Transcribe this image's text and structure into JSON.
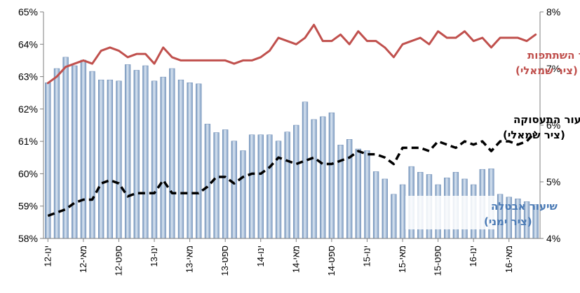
{
  "chart_data": {
    "type": "bar+line",
    "x": [
      "ינו-12",
      "פבר-12",
      "מרץ-12",
      "אפר-12",
      "מאי-12",
      "יונ-12",
      "יול-12",
      "אוג-12",
      "ספט-12",
      "אוק-12",
      "נוב-12",
      "דצמ-12",
      "ינו-13",
      "פבר-13",
      "מרץ-13",
      "אפר-13",
      "מאי-13",
      "יונ-13",
      "יול-13",
      "אוג-13",
      "ספט-13",
      "אוק-13",
      "נוב-13",
      "דצמ-13",
      "ינו-14",
      "פבר-14",
      "מרץ-14",
      "אפר-14",
      "מאי-14",
      "יונ-14",
      "יול-14",
      "אוג-14",
      "ספט-14",
      "אוק-14",
      "נוב-14",
      "דצמ-14",
      "ינו-15",
      "פבר-15",
      "מרץ-15",
      "אפר-15",
      "מאי-15",
      "יונ-15",
      "יול-15",
      "אוג-15",
      "ספט-15",
      "אוק-15",
      "נוב-15",
      "דצמ-15",
      "ינו-16",
      "פבר-16",
      "מרץ-16",
      "אפר-16",
      "מאי-16",
      "יונ-16",
      "יול-16",
      "אוג-16"
    ],
    "x_tick_labels": [
      "ינו-12",
      "מאי-12",
      "ספט-12",
      "ינו-13",
      "מאי-13",
      "ספט-13",
      "ינו-14",
      "מאי-14",
      "ספט-14",
      "ינו-15",
      "מאי-15",
      "ספט-15",
      "ינו-16",
      "מאי-16"
    ],
    "left_axis": {
      "ylim": [
        58,
        65
      ],
      "ticks": [
        "58%",
        "59%",
        "60%",
        "61%",
        "62%",
        "63%",
        "64%",
        "65%"
      ]
    },
    "right_axis": {
      "ylim": [
        4,
        8
      ],
      "ticks": [
        "4%",
        "5%",
        "6%",
        "7%",
        "8%"
      ]
    },
    "series": [
      {
        "name": "שיעור השתתפות",
        "axis_note": "(ציר שמאלי)",
        "axis": "left",
        "style": "line",
        "color": "#c0504d",
        "values": [
          62.8,
          63.0,
          63.3,
          63.4,
          63.5,
          63.4,
          63.8,
          63.9,
          63.8,
          63.6,
          63.7,
          63.7,
          63.4,
          63.9,
          63.6,
          63.5,
          63.5,
          63.5,
          63.5,
          63.5,
          63.5,
          63.4,
          63.5,
          63.5,
          63.6,
          63.8,
          64.2,
          64.1,
          64.0,
          64.2,
          64.6,
          64.1,
          64.1,
          64.3,
          64.0,
          64.4,
          64.1,
          64.1,
          63.9,
          63.6,
          64.0,
          64.1,
          64.2,
          64.0,
          64.4,
          64.2,
          64.2,
          64.4,
          64.1,
          64.2,
          63.9,
          64.2,
          64.2,
          64.2,
          64.1,
          64.3
        ]
      },
      {
        "name": "שיעור התעסוקה",
        "axis_note": "(ציר שמאלי)",
        "axis": "left",
        "style": "dashed-line",
        "color": "#000000",
        "values": [
          58.7,
          58.8,
          58.9,
          59.1,
          59.2,
          59.2,
          59.7,
          59.8,
          59.7,
          59.3,
          59.4,
          59.4,
          59.4,
          59.8,
          59.4,
          59.4,
          59.4,
          59.4,
          59.6,
          59.9,
          59.9,
          59.7,
          59.9,
          60.0,
          60.0,
          60.2,
          60.5,
          60.4,
          60.3,
          60.4,
          60.5,
          60.3,
          60.3,
          60.4,
          60.5,
          60.7,
          60.6,
          60.6,
          60.5,
          60.3,
          60.8,
          60.8,
          60.8,
          60.7,
          61.0,
          60.9,
          60.8,
          61.0,
          60.9,
          61.0,
          60.7,
          61.0,
          61.0,
          60.9,
          61.0,
          61.3
        ]
      },
      {
        "name": "שיעור אבטלה",
        "axis_note": "(ציר ימני)",
        "axis": "right",
        "style": "bar",
        "color": "#8eaacb",
        "values": [
          6.75,
          7.0,
          7.2,
          7.05,
          7.15,
          6.95,
          6.8,
          6.8,
          6.78,
          7.07,
          6.97,
          7.05,
          6.78,
          6.85,
          7.0,
          6.8,
          6.75,
          6.73,
          6.02,
          5.87,
          5.92,
          5.72,
          5.55,
          5.83,
          5.83,
          5.83,
          5.72,
          5.88,
          6.0,
          6.41,
          6.1,
          6.15,
          6.22,
          5.65,
          5.75,
          5.58,
          5.55,
          5.18,
          5.05,
          4.78,
          4.95,
          5.27,
          5.17,
          5.13,
          4.95,
          5.07,
          5.17,
          5.05,
          4.95,
          5.22,
          5.23,
          4.78,
          4.73,
          4.7,
          4.65,
          4.6
        ]
      }
    ]
  }
}
